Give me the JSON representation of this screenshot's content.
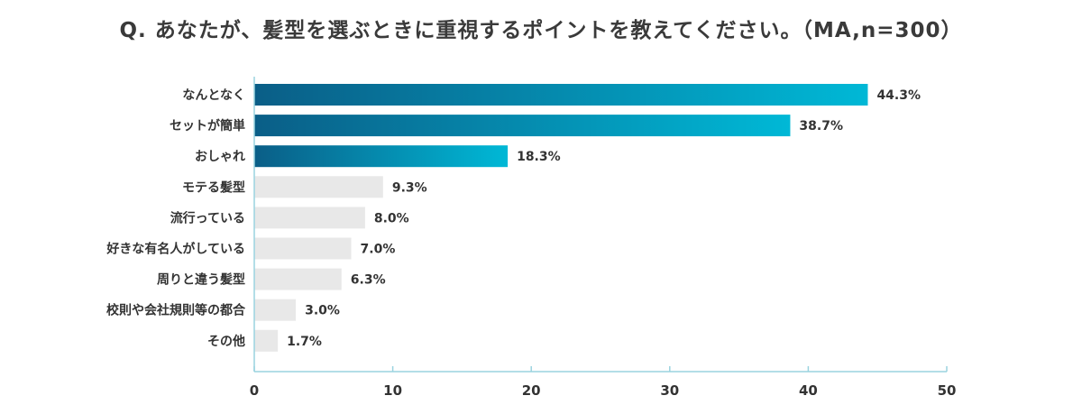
{
  "title": "Q. あなたが、髪型を選ぶときに重視するポイントを教えてください。（MA,n=300）",
  "colors": {
    "highlight_start": "#0a5e87",
    "highlight_end": "#00b8d6",
    "other": "#e8e8e8",
    "axis": "#9ad3df",
    "text": "#333333"
  },
  "chart_data": {
    "type": "bar",
    "orientation": "horizontal",
    "categories": [
      "なんとなく",
      "セットが簡単",
      "おしゃれ",
      "モテる髪型",
      "流行っている",
      "好きな有名人がしている",
      "周りと違う髪型",
      "校則や会社規則等の都合",
      "その他"
    ],
    "values": [
      44.3,
      38.7,
      18.3,
      9.3,
      8.0,
      7.0,
      6.3,
      3.0,
      1.7
    ],
    "value_labels": [
      "44.3%",
      "38.7%",
      "18.3%",
      "9.3%",
      "8.0%",
      "7.0%",
      "6.3%",
      "3.0%",
      "1.7%"
    ],
    "highlighted_count": 3,
    "xlim": [
      0,
      50
    ],
    "xticks": [
      "0",
      "10",
      "20",
      "30",
      "40",
      "50"
    ],
    "grid": false
  }
}
